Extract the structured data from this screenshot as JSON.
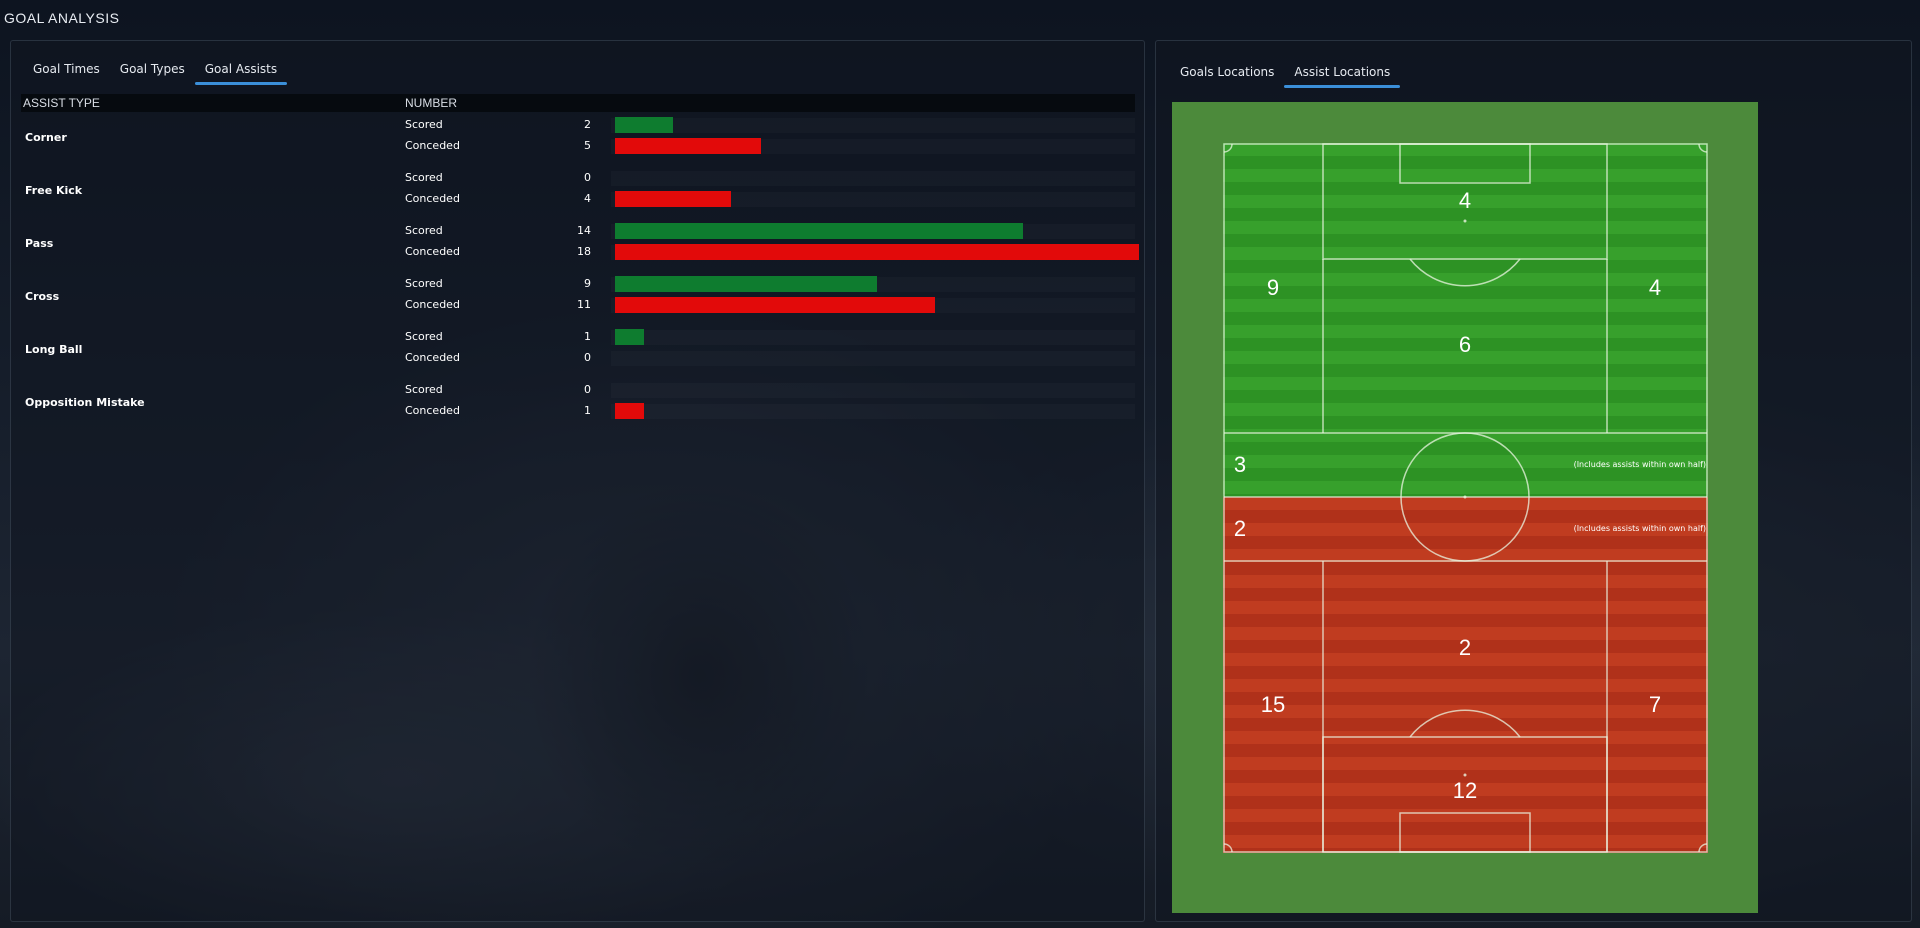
{
  "page": {
    "title": "GOAL ANALYSIS"
  },
  "left_panel": {
    "tabs": [
      {
        "label": "Goal Times",
        "active": false
      },
      {
        "label": "Goal Types",
        "active": false
      },
      {
        "label": "Goal Assists",
        "active": true
      }
    ],
    "header": {
      "assist_type": "ASSIST TYPE",
      "number": "NUMBER"
    },
    "rows": [
      {
        "type": "Corner",
        "scored": {
          "label": "Scored",
          "value": 2
        },
        "conceded": {
          "label": "Conceded",
          "value": 5
        }
      },
      {
        "type": "Free Kick",
        "scored": {
          "label": "Scored",
          "value": 0
        },
        "conceded": {
          "label": "Conceded",
          "value": 4
        }
      },
      {
        "type": "Pass",
        "scored": {
          "label": "Scored",
          "value": 14
        },
        "conceded": {
          "label": "Conceded",
          "value": 18
        }
      },
      {
        "type": "Cross",
        "scored": {
          "label": "Scored",
          "value": 9
        },
        "conceded": {
          "label": "Conceded",
          "value": 11
        }
      },
      {
        "type": "Long Ball",
        "scored": {
          "label": "Scored",
          "value": 1
        },
        "conceded": {
          "label": "Conceded",
          "value": 0
        }
      },
      {
        "type": "Opposition Mistake",
        "scored": {
          "label": "Scored",
          "value": 0
        },
        "conceded": {
          "label": "Conceded",
          "value": 1
        }
      }
    ],
    "bar_max": 18,
    "colors": {
      "scored": "#0e7c2f",
      "conceded": "#e20a0a"
    }
  },
  "right_panel": {
    "tabs": [
      {
        "label": "Goals Locations",
        "active": false
      },
      {
        "label": "Assist Locations",
        "active": true
      }
    ],
    "pitch": {
      "scored": {
        "six_yard_area": "4",
        "left_flank": "9",
        "right_flank": "4",
        "central_box_edge": "6",
        "own_half": "3",
        "own_half_note": "(Includes assists within own half)"
      },
      "conceded": {
        "own_half": "2",
        "own_half_note": "(Includes assists within own half)",
        "central_box_edge": "2",
        "left_flank": "15",
        "right_flank": "7",
        "six_yard_area": "12"
      },
      "colors": {
        "scored_zone": "#37a02c",
        "conceded_zone": "#c03c20",
        "surround": "#4c8a3b"
      }
    }
  }
}
